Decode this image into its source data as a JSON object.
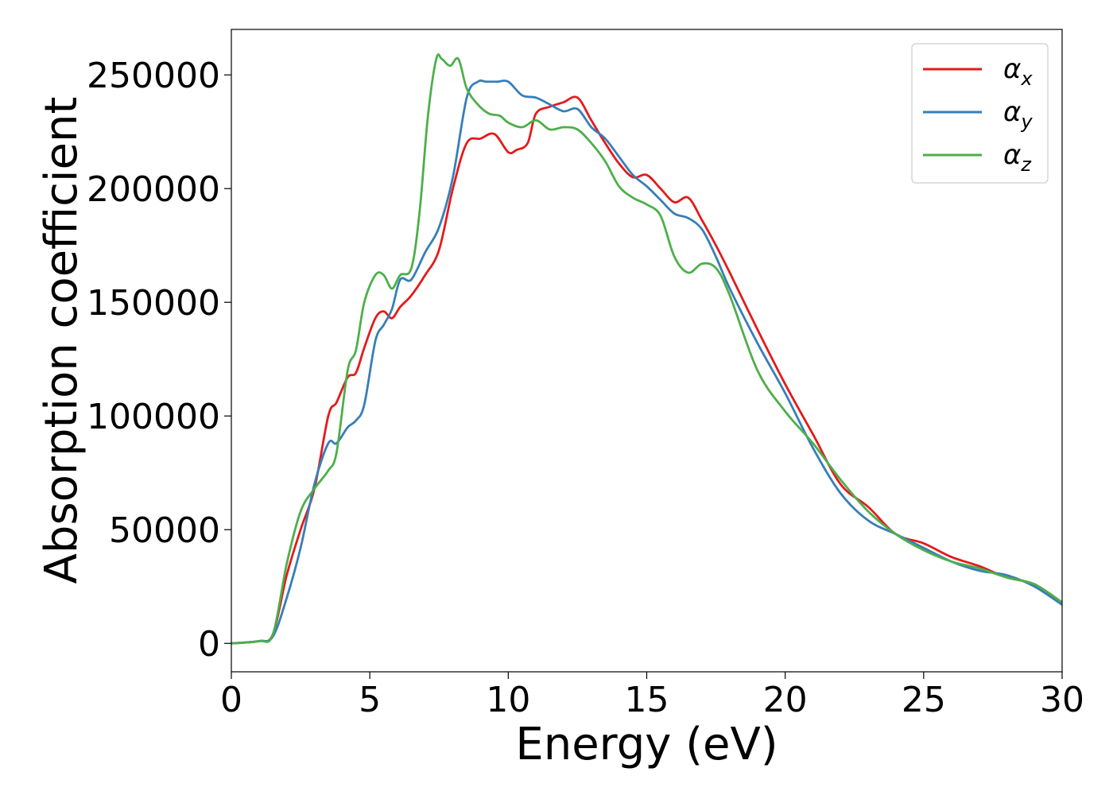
{
  "chart_data": {
    "type": "line",
    "title": "",
    "xlabel": "Energy (eV)",
    "ylabel": "Absorption coefficient",
    "xlim": [
      0,
      30
    ],
    "ylim": [
      -12500,
      270000
    ],
    "xticks": [
      0,
      5,
      10,
      15,
      20,
      25,
      30
    ],
    "xtick_labels": [
      "0",
      "5",
      "10",
      "15",
      "20",
      "25",
      "30"
    ],
    "yticks": [
      0,
      50000,
      100000,
      150000,
      200000,
      250000
    ],
    "ytick_labels": [
      "0",
      "50000",
      "100000",
      "150000",
      "200000",
      "250000"
    ],
    "grid": false,
    "legend_position": "top-right",
    "series": [
      {
        "name": "αx",
        "label_base": "α",
        "label_sub": "x",
        "color": "#e41a1c",
        "x": [
          0,
          1,
          1.5,
          2,
          2.5,
          3,
          3.5,
          3.8,
          4.2,
          4.5,
          4.8,
          5.2,
          5.5,
          5.8,
          6.1,
          6.5,
          7.0,
          7.5,
          8.0,
          8.5,
          9.0,
          9.5,
          10.0,
          10.3,
          10.7,
          11.0,
          11.5,
          12.0,
          12.5,
          13.0,
          13.5,
          14.0,
          14.5,
          15.0,
          15.5,
          16.0,
          16.5,
          17.0,
          17.5,
          18.0,
          19.0,
          20.0,
          21.0,
          22.0,
          23.0,
          24.0,
          25.0,
          26.0,
          27.0,
          28.0,
          29.0,
          30.0
        ],
        "y": [
          0,
          1000,
          4000,
          30000,
          50000,
          68000,
          100000,
          106000,
          117000,
          119000,
          130000,
          143000,
          146000,
          143000,
          148000,
          153000,
          162000,
          173000,
          200000,
          220000,
          222000,
          224000,
          216000,
          217000,
          220000,
          233000,
          236000,
          238000,
          240000,
          230000,
          220000,
          211000,
          205000,
          206000,
          200000,
          194000,
          196000,
          186000,
          175000,
          163000,
          138000,
          114000,
          92000,
          70000,
          60000,
          48000,
          44000,
          38000,
          34000,
          29000,
          26000,
          18000
        ]
      },
      {
        "name": "αy",
        "label_base": "α",
        "label_sub": "y",
        "color": "#377eb8",
        "x": [
          0,
          1,
          1.5,
          2,
          2.5,
          3,
          3.5,
          3.8,
          4.2,
          4.5,
          4.8,
          5.2,
          5.5,
          5.8,
          6.1,
          6.5,
          7.0,
          7.5,
          8.0,
          8.5,
          8.9,
          9.2,
          9.6,
          10.0,
          10.5,
          11.0,
          11.5,
          12.0,
          12.5,
          13.0,
          13.5,
          14.0,
          14.5,
          15.0,
          15.5,
          16.0,
          16.5,
          17.0,
          17.5,
          18.0,
          19.0,
          20.0,
          21.0,
          22.0,
          23.0,
          24.0,
          25.0,
          26.0,
          27.0,
          28.0,
          29.0,
          30.0
        ],
        "y": [
          0,
          1000,
          3000,
          20000,
          42000,
          70000,
          88000,
          88000,
          95000,
          98000,
          105000,
          133000,
          140000,
          147000,
          160000,
          160000,
          172000,
          183000,
          205000,
          240000,
          247000,
          247000,
          247000,
          247000,
          241000,
          240000,
          237000,
          234000,
          235000,
          227000,
          222000,
          214000,
          206000,
          201000,
          195000,
          189000,
          187000,
          182000,
          170000,
          156000,
          132000,
          110000,
          86000,
          66000,
          54000,
          48000,
          42000,
          36000,
          32000,
          30000,
          25000,
          17000
        ]
      },
      {
        "name": "αz",
        "label_base": "α",
        "label_sub": "z",
        "color": "#4daf4a",
        "x": [
          0,
          1,
          1.5,
          2,
          2.5,
          3,
          3.5,
          3.8,
          4.2,
          4.5,
          4.8,
          5.2,
          5.5,
          5.8,
          6.1,
          6.5,
          6.8,
          7.1,
          7.4,
          7.6,
          7.9,
          8.2,
          8.5,
          8.9,
          9.3,
          9.7,
          10.0,
          10.5,
          11.0,
          11.5,
          12.0,
          12.5,
          13.0,
          13.5,
          14.0,
          14.5,
          15.0,
          15.5,
          16.0,
          16.5,
          17.0,
          17.5,
          18.0,
          19.0,
          20.0,
          21.0,
          22.0,
          23.0,
          24.0,
          25.0,
          26.0,
          27.0,
          28.0,
          29.0,
          30.0
        ],
        "y": [
          0,
          1000,
          4000,
          35000,
          58000,
          68000,
          76000,
          84000,
          120000,
          129000,
          150000,
          162000,
          162000,
          156000,
          162000,
          165000,
          190000,
          232000,
          257000,
          257000,
          254000,
          257000,
          244000,
          237000,
          233000,
          232000,
          229000,
          227000,
          230000,
          226000,
          227000,
          226000,
          220000,
          212000,
          201000,
          196000,
          193000,
          188000,
          170000,
          163000,
          167000,
          165000,
          153000,
          120000,
          102000,
          88000,
          72000,
          58000,
          48000,
          41000,
          36000,
          33000,
          29000,
          26000,
          18000
        ]
      }
    ]
  }
}
